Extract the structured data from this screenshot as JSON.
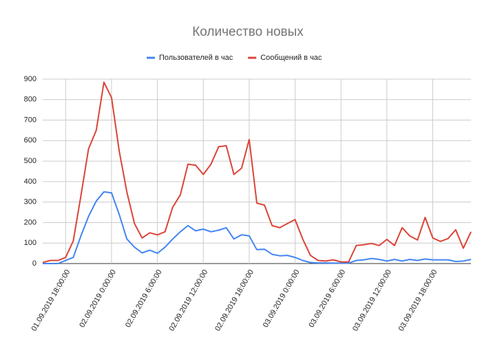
{
  "chart_data": {
    "type": "line",
    "title": "Количество новых",
    "x": [
      "01.09.2019 15:00:00",
      "01.09.2019 16:00:00",
      "01.09.2019 17:00:00",
      "01.09.2019 18:00:00",
      "01.09.2019 19:00:00",
      "01.09.2019 20:00:00",
      "01.09.2019 21:00:00",
      "01.09.2019 22:00:00",
      "01.09.2019 23:00:00",
      "02.09.2019 0:00:00",
      "02.09.2019 1:00:00",
      "02.09.2019 2:00:00",
      "02.09.2019 3:00:00",
      "02.09.2019 4:00:00",
      "02.09.2019 5:00:00",
      "02.09.2019 6:00:00",
      "02.09.2019 7:00:00",
      "02.09.2019 8:00:00",
      "02.09.2019 9:00:00",
      "02.09.2019 10:00:00",
      "02.09.2019 11:00:00",
      "02.09.2019 12:00:00",
      "02.09.2019 13:00:00",
      "02.09.2019 14:00:00",
      "02.09.2019 15:00:00",
      "02.09.2019 16:00:00",
      "02.09.2019 17:00:00",
      "02.09.2019 18:00:00",
      "02.09.2019 19:00:00",
      "02.09.2019 20:00:00",
      "02.09.2019 21:00:00",
      "02.09.2019 22:00:00",
      "02.09.2019 23:00:00",
      "03.09.2019 0:00:00",
      "03.09.2019 1:00:00",
      "03.09.2019 2:00:00",
      "03.09.2019 3:00:00",
      "03.09.2019 4:00:00",
      "03.09.2019 5:00:00",
      "03.09.2019 6:00:00",
      "03.09.2019 7:00:00",
      "03.09.2019 8:00:00",
      "03.09.2019 9:00:00",
      "03.09.2019 10:00:00",
      "03.09.2019 11:00:00",
      "03.09.2019 12:00:00",
      "03.09.2019 13:00:00",
      "03.09.2019 14:00:00",
      "03.09.2019 15:00:00",
      "03.09.2019 16:00:00",
      "03.09.2019 17:00:00",
      "03.09.2019 18:00:00",
      "03.09.2019 19:00:00",
      "03.09.2019 20:00:00",
      "03.09.2019 21:00:00",
      "03.09.2019 22:00:00",
      "03.09.2019 23:00:00"
    ],
    "series": [
      {
        "name": "Пользователей в час",
        "color": "#4285f4",
        "values": [
          0,
          0,
          0,
          15,
          30,
          135,
          230,
          305,
          350,
          345,
          240,
          120,
          80,
          52,
          65,
          50,
          80,
          120,
          155,
          185,
          160,
          168,
          155,
          163,
          175,
          120,
          140,
          135,
          68,
          70,
          45,
          38,
          40,
          30,
          15,
          5,
          3,
          3,
          2,
          2,
          2,
          15,
          18,
          25,
          20,
          12,
          20,
          12,
          20,
          15,
          22,
          18,
          18,
          18,
          10,
          12,
          20
        ]
      },
      {
        "name": "Сообщений в час",
        "color": "#db4437",
        "values": [
          5,
          15,
          15,
          30,
          110,
          330,
          560,
          650,
          885,
          810,
          550,
          350,
          195,
          125,
          150,
          140,
          155,
          275,
          335,
          485,
          480,
          435,
          485,
          570,
          575,
          435,
          465,
          605,
          295,
          285,
          185,
          175,
          195,
          215,
          120,
          40,
          15,
          12,
          18,
          8,
          8,
          88,
          92,
          98,
          88,
          118,
          88,
          175,
          135,
          115,
          225,
          125,
          108,
          122,
          165,
          75,
          155
        ]
      }
    ],
    "xlim": [
      "01.09.2019 15:00:00",
      "03.09.2019 23:00:00"
    ],
    "xticks": [
      "01.09.2019 18:00:00",
      "02.09.2019 0:00:00",
      "02.09.2019 6:00:00",
      "02.09.2019 12:00:00",
      "02.09.2019 18:00:00",
      "03.09.2019 0:00:00",
      "03.09.2019 6:00:00",
      "03.09.2019 12:00:00",
      "03.09.2019 18:00:00"
    ],
    "ylim": [
      0,
      900
    ],
    "yticks": [
      0,
      100,
      200,
      300,
      400,
      500,
      600,
      700,
      800,
      900
    ],
    "grid": true,
    "legend": "top"
  }
}
